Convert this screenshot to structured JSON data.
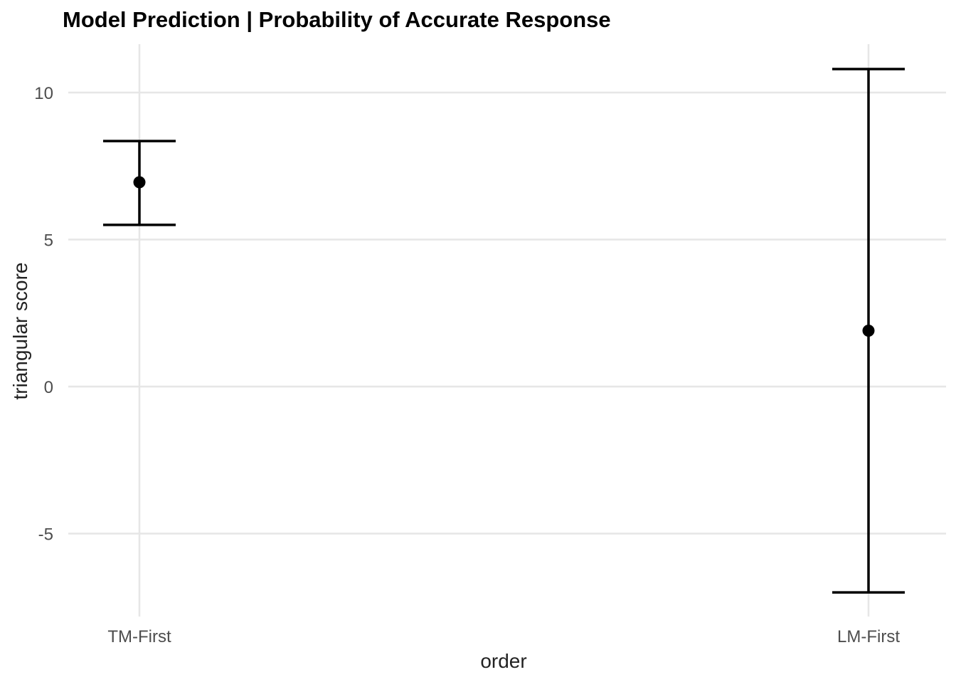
{
  "chart_data": {
    "type": "errorbar",
    "title": "Model Prediction | Probability of Accurate Response",
    "xlabel": "order",
    "ylabel": "triangular score",
    "categories": [
      "TM-First",
      "LM-First"
    ],
    "estimates": [
      6.95,
      1.9
    ],
    "lower": [
      5.5,
      -7.0
    ],
    "upper": [
      8.35,
      10.8
    ],
    "yticks": [
      10,
      5,
      0,
      -5
    ],
    "ytick_labels": [
      "10",
      "5",
      "0",
      "-5"
    ],
    "ylim": [
      -7.9,
      11.7
    ],
    "grid": true,
    "legend": "none",
    "colors": {
      "marks": "#000000",
      "grid": "#e6e6e6",
      "tick_text": "#4d4d4d"
    }
  }
}
